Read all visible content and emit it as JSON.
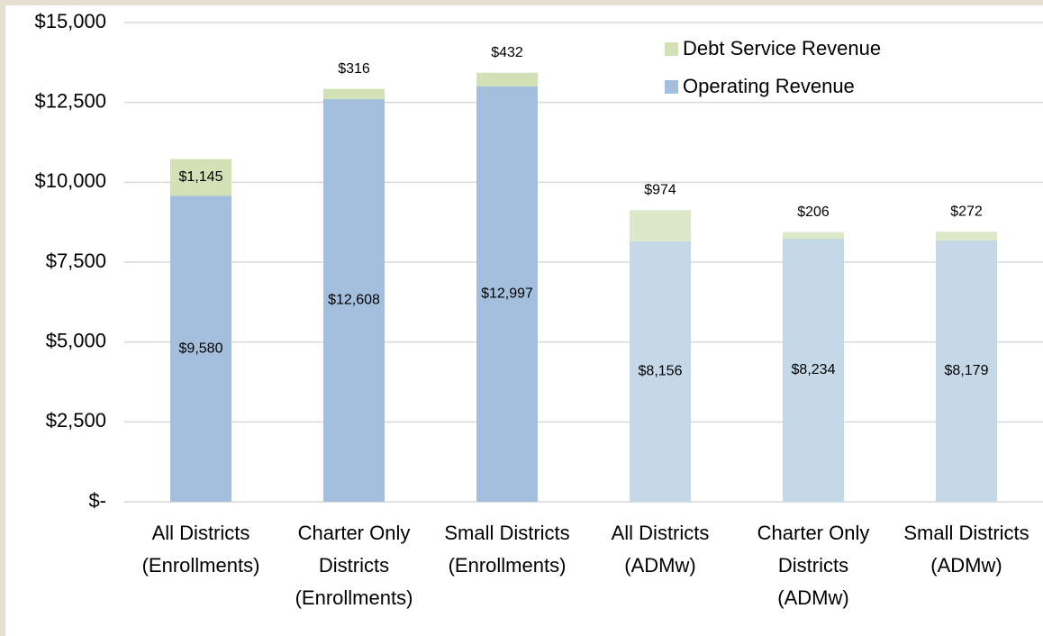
{
  "chart_data": {
    "type": "stacked_bar",
    "categories": [
      [
        "All Districts",
        "(Enrollments)"
      ],
      [
        "Charter Only",
        "Districts",
        "(Enrollments)"
      ],
      [
        "Small Districts",
        "(Enrollments)"
      ],
      [
        "All Districts",
        "(ADMw)"
      ],
      [
        "Charter Only",
        "Districts",
        "(ADMw)"
      ],
      [
        "Small Districts",
        "(ADMw)"
      ]
    ],
    "series": [
      {
        "name": "Operating Revenue",
        "color": "#a3bfdd",
        "colors": [
          "#a3bfdd",
          "#a3bfdd",
          "#a3bfdd",
          "#c5d8e8",
          "#c5d8e8",
          "#c5d8e8"
        ],
        "values": [
          9580,
          12608,
          12997,
          8156,
          8234,
          8179
        ],
        "value_labels": [
          "$9,580",
          "$12,608",
          "$12,997",
          "$8,156",
          "$8,234",
          "$8,179"
        ]
      },
      {
        "name": "Debt Service Revenue",
        "color": "#d3e1b6",
        "colors": [
          "#d3e1b6",
          "#d3e1b6",
          "#d3e1b6",
          "#dde8c8",
          "#dde8c8",
          "#dde8c8"
        ],
        "values": [
          1145,
          316,
          432,
          974,
          206,
          272
        ],
        "value_labels": [
          "$1,145",
          "$316",
          "$432",
          "$974",
          "$206",
          "$272"
        ]
      }
    ],
    "ylim": [
      0,
      15000
    ],
    "yticks": [
      {
        "value": 0,
        "label": "$-"
      },
      {
        "value": 2500,
        "label": "$2,500"
      },
      {
        "value": 5000,
        "label": "$5,000"
      },
      {
        "value": 7500,
        "label": "$7,500"
      },
      {
        "value": 10000,
        "label": "$10,000"
      },
      {
        "value": 12500,
        "label": "$12,500"
      },
      {
        "value": 15000,
        "label": "$15,000"
      }
    ],
    "grid": true
  }
}
